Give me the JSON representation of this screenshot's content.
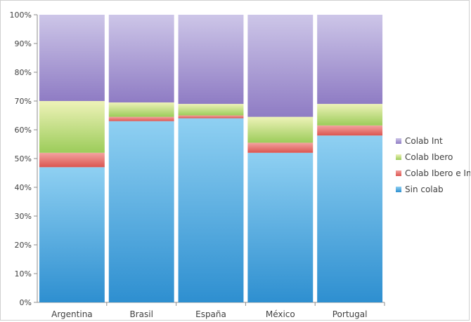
{
  "chart_data": {
    "type": "bar",
    "stacked": true,
    "percent": true,
    "categories": [
      "Argentina",
      "Brasil",
      "España",
      "México",
      "Portugal"
    ],
    "series": [
      {
        "name": "Sin colab",
        "color": "#4aa8e0",
        "values": [
          47,
          63,
          64,
          52,
          58
        ]
      },
      {
        "name": "Colab Ibero  e Int",
        "color": "#e8706c",
        "values": [
          5,
          1.5,
          1,
          3.5,
          3.5
        ]
      },
      {
        "name": "Colab Ibero",
        "color": "#b8d878",
        "values": [
          18,
          5,
          4,
          9,
          7.5
        ]
      },
      {
        "name": "Colab Int",
        "color": "#a99ad2",
        "values": [
          30,
          30.5,
          31,
          35.5,
          31
        ]
      }
    ],
    "y_ticks": [
      "0%",
      "10%",
      "20%",
      "30%",
      "40%",
      "50%",
      "60%",
      "70%",
      "80%",
      "90%",
      "100%"
    ],
    "ylim": [
      0,
      100
    ],
    "legend_position": "right",
    "grid": false
  }
}
